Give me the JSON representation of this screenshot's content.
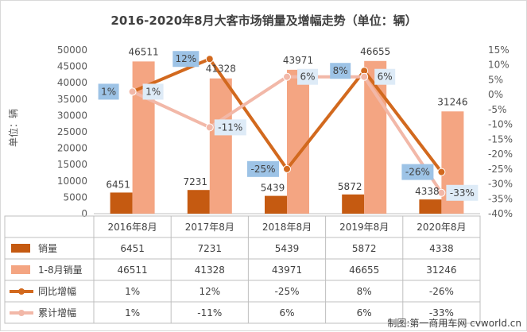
{
  "chart_data": {
    "type": "bar",
    "title": "2016-2020年8月大客市场销量及增幅走势（单位：辆）",
    "ylabel": "单位：辆",
    "ylim": [
      0,
      50000
    ],
    "y_ticks": [
      "0",
      "5000",
      "10000",
      "15000",
      "20000",
      "25000",
      "30000",
      "35000",
      "40000",
      "45000",
      "50000"
    ],
    "y2lim": [
      -40,
      15
    ],
    "y2_ticks": [
      "-40%",
      "-35%",
      "-30%",
      "-25%",
      "-20%",
      "-15%",
      "-10%",
      "-5%",
      "0%",
      "5%",
      "10%",
      "15%"
    ],
    "categories": [
      "2016年8月",
      "2017年8月",
      "2018年8月",
      "2019年8月",
      "2020年8月"
    ],
    "series": [
      {
        "name": "销量",
        "kind": "bar",
        "axis": "left",
        "color": "#c55a11",
        "values": [
          6451,
          7231,
          5439,
          5872,
          4338
        ],
        "labels": [
          "6451",
          "7231",
          "5439",
          "5872",
          "4338"
        ]
      },
      {
        "name": "1-8月销量",
        "kind": "bar",
        "axis": "left",
        "color": "#f4a582",
        "values": [
          46511,
          41328,
          43971,
          46655,
          31246
        ],
        "labels": [
          "46511",
          "41328",
          "43971",
          "46655",
          "31246"
        ]
      },
      {
        "name": "同比增幅",
        "kind": "line",
        "axis": "right",
        "color": "#d2691e",
        "values": [
          1,
          12,
          -25,
          8,
          -26
        ],
        "labels": [
          "1%",
          "12%",
          "-25%",
          "8%",
          "-26%"
        ]
      },
      {
        "name": "累计增幅",
        "kind": "line",
        "axis": "right",
        "color": "#f2b8a8",
        "values": [
          1,
          -11,
          6,
          6,
          -33
        ],
        "labels": [
          "1%",
          "-11%",
          "6%",
          "6%",
          "-33%"
        ]
      }
    ],
    "data_table": true,
    "grid": false
  },
  "watermark": "制图:第一商用车网 cvworld.cn"
}
